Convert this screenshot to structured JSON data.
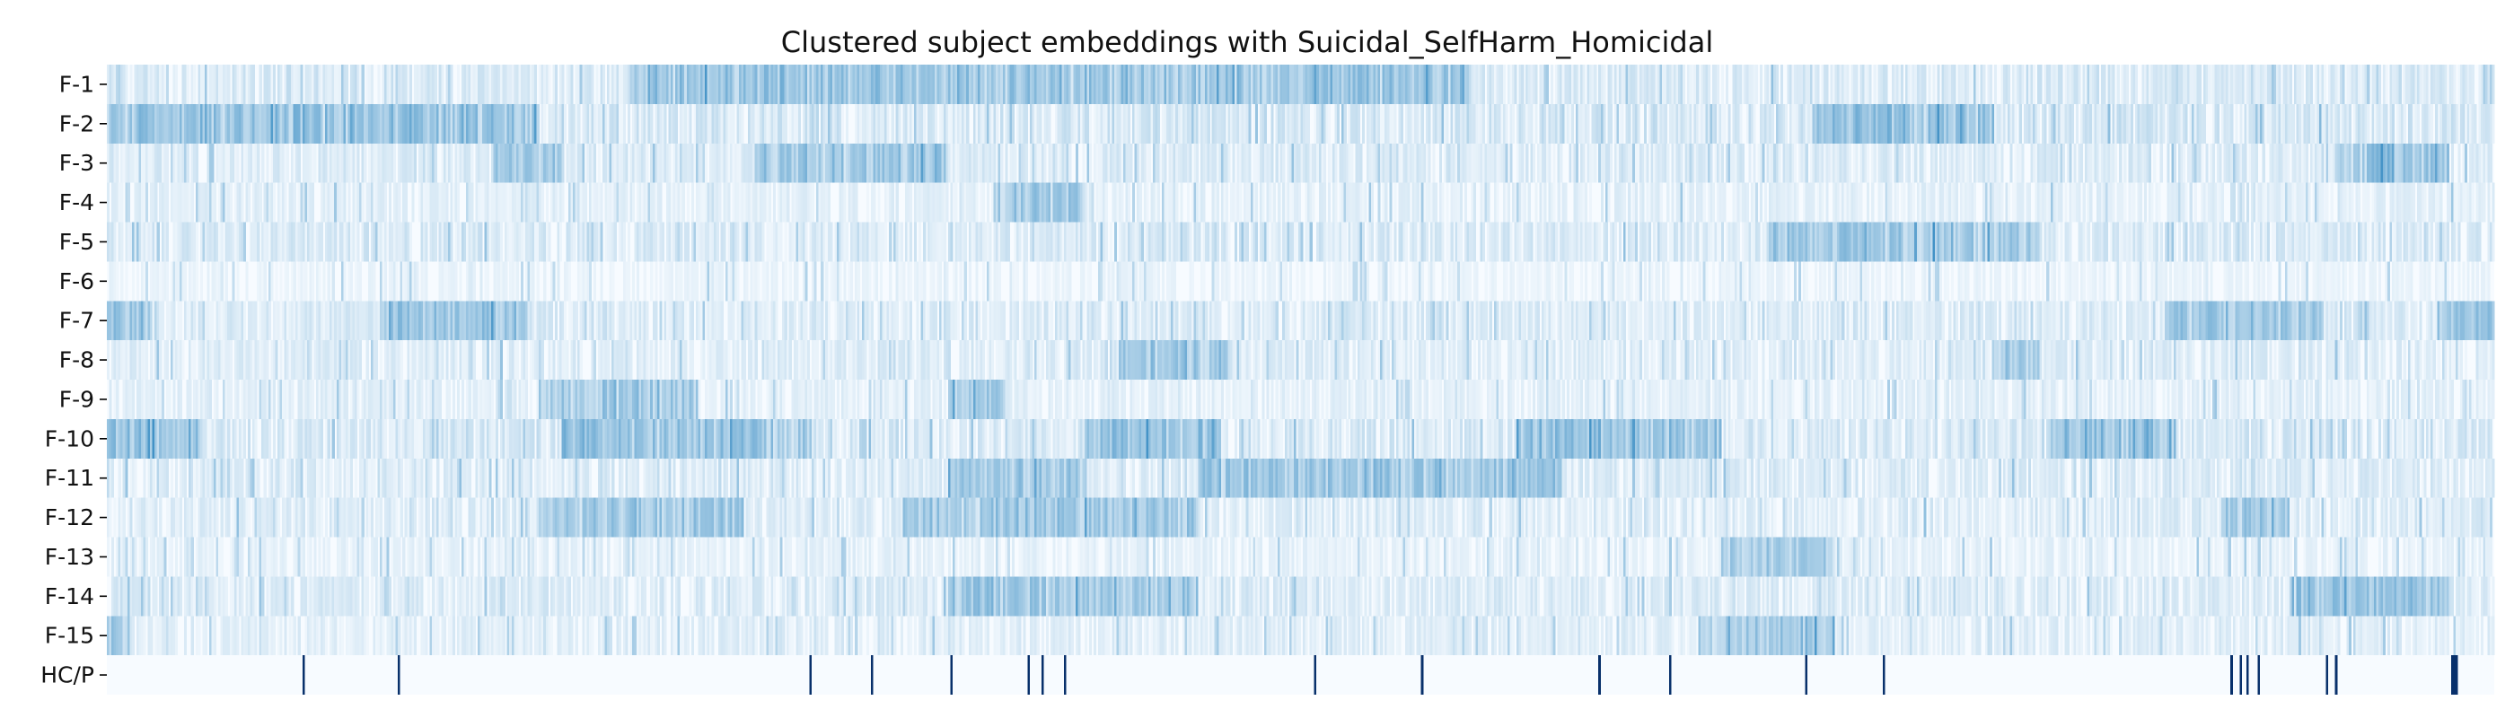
{
  "chart_data": {
    "type": "heatmap",
    "title": "Clustered subject embeddings with Suicidal_SelfHarm_Homicidal",
    "xlabel": "",
    "ylabel": "",
    "grid": false,
    "legend": "none",
    "colormap": "Blues",
    "row_labels": [
      "F-1",
      "F-2",
      "F-3",
      "F-4",
      "F-5",
      "F-6",
      "F-7",
      "F-8",
      "F-9",
      "F-10",
      "F-11",
      "F-12",
      "F-13",
      "F-14",
      "F-15",
      "HC/P"
    ],
    "n_subjects": 1050,
    "feature_baseline": [
      0.12,
      0.14,
      0.11,
      0.08,
      0.12,
      0.05,
      0.11,
      0.1,
      0.08,
      0.13,
      0.11,
      0.1,
      0.07,
      0.11,
      0.09
    ],
    "feature_high_activation_ranges": [
      [
        [
          230,
          600
        ]
      ],
      [
        [
          0,
          60
        ],
        [
          60,
          120
        ],
        [
          120,
          190
        ],
        [
          750,
          810
        ],
        [
          790,
          830
        ]
      ],
      [
        [
          285,
          370
        ],
        [
          170,
          200
        ],
        [
          980,
          1030
        ]
      ],
      [
        [
          390,
          430
        ]
      ],
      [
        [
          730,
          850
        ]
      ],
      [],
      [
        [
          0,
          20
        ],
        [
          120,
          185
        ],
        [
          905,
          975
        ],
        [
          1025,
          1050
        ]
      ],
      [
        [
          445,
          495
        ],
        [
          830,
          850
        ]
      ],
      [
        [
          190,
          260
        ],
        [
          370,
          395
        ]
      ],
      [
        [
          0,
          40
        ],
        [
          200,
          310
        ],
        [
          430,
          490
        ],
        [
          620,
          710
        ],
        [
          855,
          910
        ]
      ],
      [
        [
          370,
          430
        ],
        [
          480,
          640
        ]
      ],
      [
        [
          190,
          280
        ],
        [
          350,
          480
        ],
        [
          930,
          960
        ]
      ],
      [
        [
          710,
          760
        ]
      ],
      [
        [
          370,
          480
        ],
        [
          960,
          1030
        ]
      ],
      [
        [
          0,
          10
        ],
        [
          700,
          760
        ]
      ]
    ],
    "hc_p_labels": {
      "positive_subject_indices": [
        86,
        128,
        309,
        336,
        371,
        405,
        411,
        421,
        531,
        578,
        656,
        687,
        747,
        781,
        934,
        938,
        941,
        946,
        976,
        980,
        1031,
        1032,
        1033
      ],
      "colors": {
        "positive": "#08306b",
        "negative": "#f7fbff"
      }
    }
  },
  "colors": {
    "low": "#f7fbff",
    "high": "#4292c6",
    "axis": "#000000",
    "text": "#111111"
  }
}
